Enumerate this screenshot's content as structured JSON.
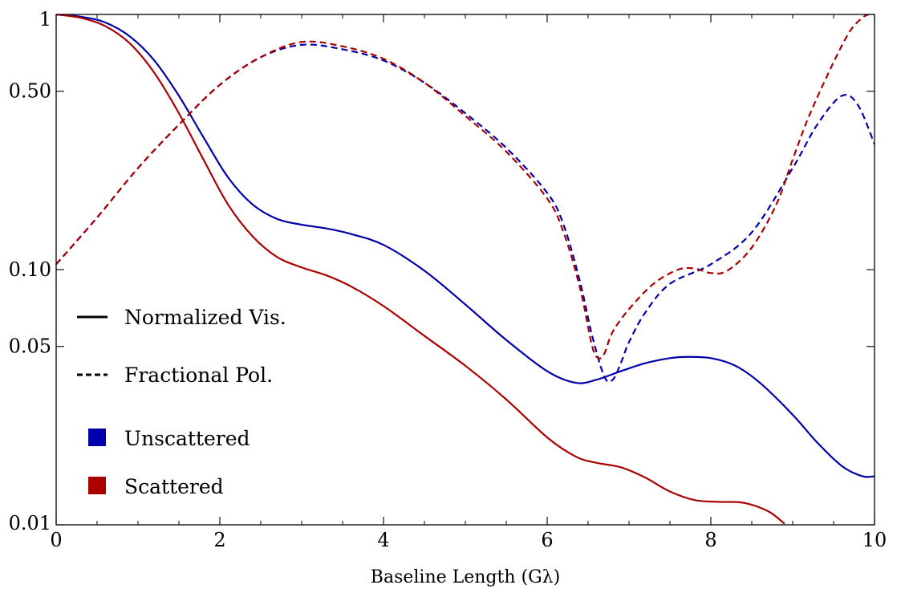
{
  "chart_data": {
    "type": "line",
    "xlabel": "Baseline Length (Gλ)",
    "ylabel": "",
    "xlim": [
      0,
      10
    ],
    "ylim": [
      0.01,
      1
    ],
    "yscale": "log",
    "grid": false,
    "legend_position": "left",
    "x_ticks": [
      0,
      2,
      4,
      6,
      8,
      10
    ],
    "x_tick_labels": [
      "0",
      "2",
      "4",
      "6",
      "8",
      "10"
    ],
    "y_ticks": [
      0.01,
      0.05,
      0.1,
      0.5,
      1
    ],
    "y_tick_labels": [
      "0.01",
      "0.05",
      "0.10",
      "0.50",
      "1"
    ],
    "legend": {
      "styles": [
        {
          "label": "Normalized Vis.",
          "dash": "solid"
        },
        {
          "label": "Fractional Pol.",
          "dash": "dashed"
        }
      ],
      "colors": [
        {
          "label": "Unscattered",
          "color": "#0000aa"
        },
        {
          "label": "Scattered",
          "color": "#aa0000"
        }
      ]
    },
    "series": [
      {
        "name": "Unscattered",
        "quantity": "Normalized Vis.",
        "color": "#0000aa",
        "dash": "solid",
        "x": [
          0,
          0.3,
          0.6,
          0.9,
          1.2,
          1.5,
          1.8,
          2.1,
          2.4,
          2.7,
          3.0,
          3.3,
          3.6,
          4.0,
          4.5,
          5.0,
          5.5,
          6.0,
          6.35,
          6.6,
          6.9,
          7.2,
          7.5,
          7.7,
          8.0,
          8.3,
          8.6,
          9.0,
          9.3,
          9.6,
          9.85,
          10.0
        ],
        "y": [
          1.0,
          0.98,
          0.93,
          0.82,
          0.66,
          0.48,
          0.33,
          0.23,
          0.18,
          0.158,
          0.15,
          0.145,
          0.138,
          0.125,
          0.099,
          0.073,
          0.053,
          0.04,
          0.036,
          0.037,
          0.04,
          0.043,
          0.045,
          0.0455,
          0.045,
          0.042,
          0.036,
          0.027,
          0.021,
          0.017,
          0.0155,
          0.0155
        ]
      },
      {
        "name": "Scattered",
        "quantity": "Normalized Vis.",
        "color": "#aa0000",
        "dash": "solid",
        "x": [
          0,
          0.3,
          0.6,
          0.9,
          1.2,
          1.5,
          1.8,
          2.1,
          2.4,
          2.7,
          3.0,
          3.3,
          3.6,
          4.0,
          4.5,
          5.0,
          5.5,
          6.0,
          6.35,
          6.6,
          6.9,
          7.2,
          7.5,
          7.8,
          8.1,
          8.4,
          8.7,
          8.9
        ],
        "y": [
          1.0,
          0.97,
          0.9,
          0.77,
          0.59,
          0.41,
          0.27,
          0.18,
          0.135,
          0.112,
          0.102,
          0.095,
          0.086,
          0.072,
          0.055,
          0.042,
          0.031,
          0.022,
          0.0185,
          0.0175,
          0.0168,
          0.0153,
          0.0135,
          0.0125,
          0.0123,
          0.0122,
          0.0113,
          0.0101
        ]
      },
      {
        "name": "Unscattered",
        "quantity": "Fractional Pol.",
        "color": "#0000aa",
        "dash": "dashed",
        "x": [
          0,
          0.5,
          1.0,
          1.5,
          2.0,
          2.5,
          3.0,
          3.5,
          4.0,
          4.5,
          5.0,
          5.5,
          6.0,
          6.2,
          6.4,
          6.55,
          6.7,
          6.8,
          6.9,
          7.0,
          7.2,
          7.5,
          8.0,
          8.5,
          9.0,
          9.3,
          9.6,
          9.8,
          10.0
        ],
        "y": [
          0.105,
          0.16,
          0.25,
          0.37,
          0.53,
          0.68,
          0.76,
          0.73,
          0.66,
          0.54,
          0.41,
          0.3,
          0.2,
          0.15,
          0.09,
          0.055,
          0.038,
          0.037,
          0.043,
          0.052,
          0.068,
          0.088,
          0.105,
          0.14,
          0.25,
          0.37,
          0.48,
          0.44,
          0.31
        ]
      },
      {
        "name": "Scattered",
        "quantity": "Fractional Pol.",
        "color": "#aa0000",
        "dash": "dashed",
        "x": [
          0,
          0.5,
          1.0,
          1.5,
          2.0,
          2.5,
          3.0,
          3.5,
          4.0,
          4.5,
          5.0,
          5.5,
          6.0,
          6.2,
          6.4,
          6.55,
          6.63,
          6.7,
          6.8,
          7.0,
          7.3,
          7.6,
          7.8,
          8.0,
          8.2,
          8.5,
          8.8,
          9.0,
          9.2,
          9.5,
          9.7,
          9.85,
          9.93
        ],
        "y": [
          0.105,
          0.16,
          0.25,
          0.37,
          0.53,
          0.68,
          0.78,
          0.75,
          0.67,
          0.54,
          0.4,
          0.29,
          0.19,
          0.14,
          0.085,
          0.05,
          0.045,
          0.047,
          0.057,
          0.07,
          0.088,
          0.1,
          0.101,
          0.097,
          0.099,
          0.122,
          0.18,
          0.27,
          0.4,
          0.65,
          0.86,
          0.97,
          1.0
        ]
      }
    ]
  }
}
